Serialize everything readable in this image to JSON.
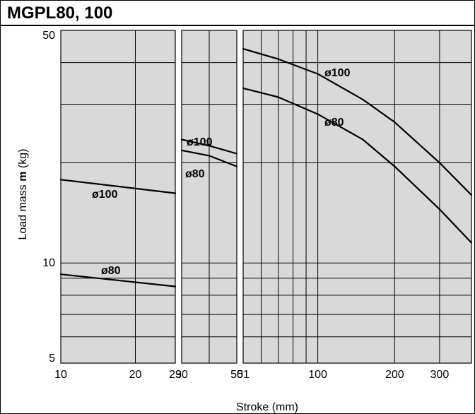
{
  "chart_data": {
    "type": "line",
    "title": "MGPL80, 100",
    "xlabel": "Stroke (mm)",
    "ylabel_prefix": "Load mass ",
    "ylabel_bold": "m",
    "ylabel_suffix": " (kg)",
    "y_scale": "log",
    "ylim": [
      5,
      50
    ],
    "y_ticks": [
      {
        "value": 5,
        "label": "5"
      },
      {
        "value": 10,
        "label": "10"
      },
      {
        "value": 50,
        "label": "50"
      }
    ],
    "y_grid": [
      5,
      6,
      7,
      8,
      9,
      10,
      20,
      30,
      40,
      50
    ],
    "grid": true,
    "panels": [
      {
        "x_scale": "log",
        "xlim": [
          10,
          29
        ],
        "x_ticks": [
          {
            "value": 10,
            "label": "10"
          },
          {
            "value": 20,
            "label": "20"
          },
          {
            "value": 29,
            "label": "29"
          }
        ],
        "x_grid": [
          20
        ],
        "series": [
          {
            "name": "ø100",
            "x": [
              10,
              29
            ],
            "y": [
              17.8,
              16.2
            ]
          },
          {
            "name": "ø80",
            "x": [
              10,
              29
            ],
            "y": [
              9.25,
              8.5
            ]
          }
        ]
      },
      {
        "x_scale": "linear",
        "xlim": [
          30,
          50
        ],
        "x_ticks": [
          {
            "value": 30,
            "label": "30"
          },
          {
            "value": 50,
            "label": "50"
          }
        ],
        "x_grid": [
          40
        ],
        "series": [
          {
            "name": "ø100",
            "x": [
              30,
              40,
              50
            ],
            "y": [
              23.5,
              22.5,
              21.3
            ]
          },
          {
            "name": "ø80",
            "x": [
              30,
              40,
              50
            ],
            "y": [
              21.8,
              21.0,
              19.5
            ]
          }
        ]
      },
      {
        "x_scale": "log",
        "xlim": [
          51,
          400
        ],
        "x_ticks": [
          {
            "value": 51,
            "label": "51"
          },
          {
            "value": 100,
            "label": "100"
          },
          {
            "value": 200,
            "label": "200"
          },
          {
            "value": 300,
            "label": "300"
          }
        ],
        "x_grid": [
          60,
          70,
          80,
          90,
          100,
          200,
          300
        ],
        "series": [
          {
            "name": "ø100",
            "x": [
              51,
              70,
              100,
              150,
              200,
              300,
              400
            ],
            "y": [
              44,
              41,
              37,
              31,
              26.5,
              20,
              16
            ]
          },
          {
            "name": "ø80",
            "x": [
              51,
              70,
              100,
              150,
              200,
              300,
              400
            ],
            "y": [
              33.5,
              31.5,
              28,
              23.5,
              19.5,
              14.5,
              11.5
            ]
          }
        ]
      }
    ]
  }
}
